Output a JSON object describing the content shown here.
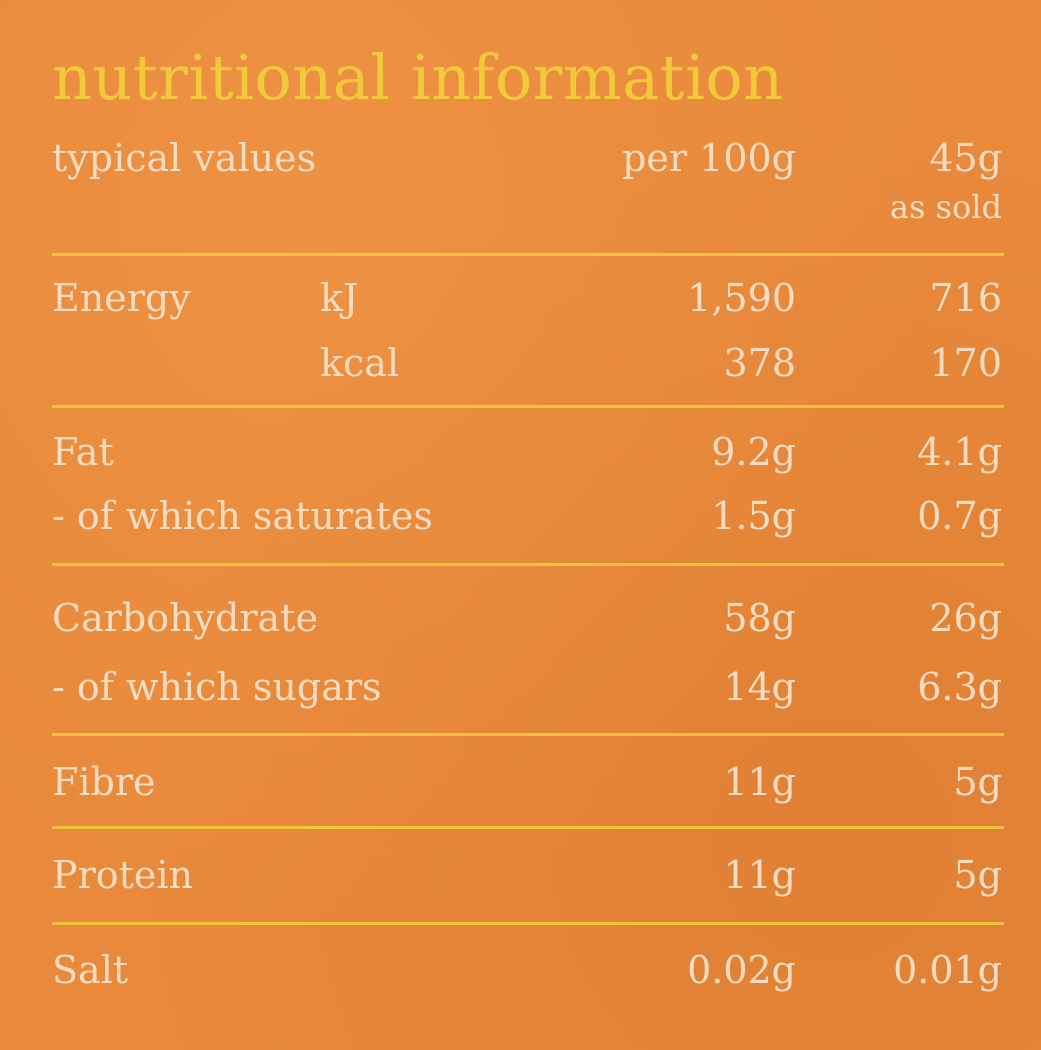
{
  "title": "nutritional information",
  "header": {
    "label": "typical values",
    "col1": "per 100g",
    "col2": "45g",
    "col2_sub": "as sold"
  },
  "rows": [
    {
      "label": "Energy",
      "unit": "kJ",
      "per100": "1,590",
      "serving": "716"
    },
    {
      "label": "",
      "unit": "kcal",
      "per100": "378",
      "serving": "170"
    },
    {
      "label": "Fat",
      "unit": "",
      "per100": "9.2g",
      "serving": "4.1g"
    },
    {
      "label": "- of which saturates",
      "unit": "",
      "per100": "1.5g",
      "serving": "0.7g"
    },
    {
      "label": "Carbohydrate",
      "unit": "",
      "per100": "58g",
      "serving": "26g"
    },
    {
      "label": "- of which sugars",
      "unit": "",
      "per100": "14g",
      "serving": "6.3g"
    },
    {
      "label": "Fibre",
      "unit": "",
      "per100": "11g",
      "serving": "5g"
    },
    {
      "label": "Protein",
      "unit": "",
      "per100": "11g",
      "serving": "5g"
    },
    {
      "label": "Salt",
      "unit": "",
      "per100": "0.02g",
      "serving": "0.01g"
    }
  ],
  "colors": {
    "background": "#e8893b",
    "title": "#f2c93a",
    "text": "#f7dcc2",
    "rule": "#f0c43a"
  }
}
